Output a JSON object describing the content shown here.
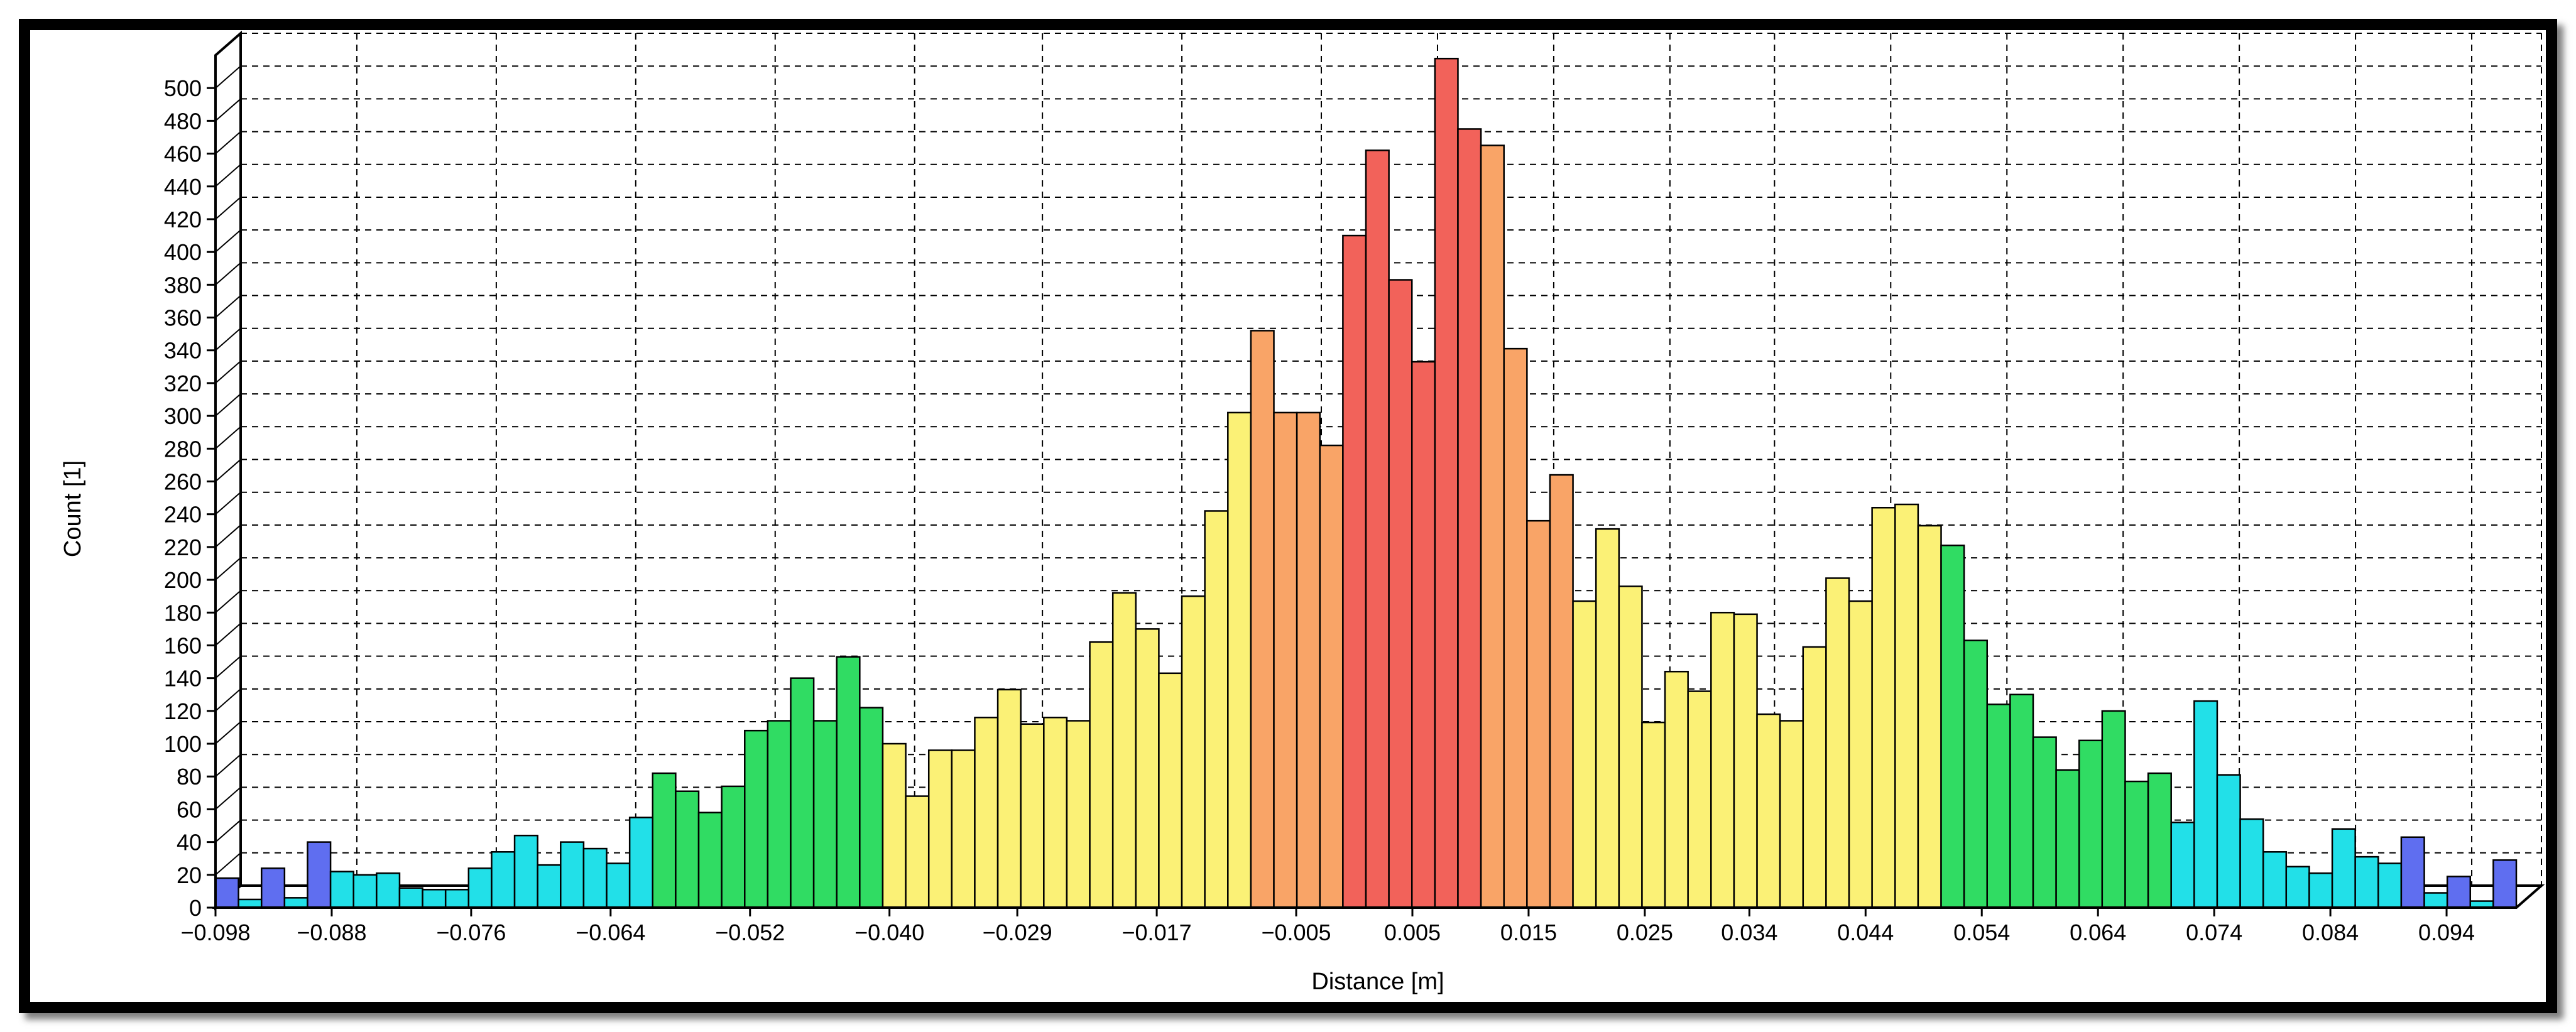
{
  "chart_data": {
    "type": "bar",
    "xlabel": "Distance [m]",
    "ylabel": "Count [1]",
    "ylim": [
      0,
      520
    ],
    "y_ticks": [
      0,
      20,
      40,
      60,
      80,
      100,
      120,
      140,
      160,
      180,
      200,
      220,
      240,
      260,
      280,
      300,
      320,
      340,
      360,
      380,
      400,
      420,
      440,
      460,
      480,
      500
    ],
    "x_tick_labels": [
      "-0.098",
      "-0.088",
      "-0.076",
      "-0.064",
      "-0.052",
      "-0.040",
      "-0.029",
      "-0.017",
      "-0.005",
      "0.005",
      "0.015",
      "0.025",
      "0.034",
      "0.044",
      "0.054",
      "0.064",
      "0.074",
      "0.084",
      "0.094"
    ],
    "xlim": [
      -0.098,
      0.1
    ],
    "bin_width": 0.002,
    "grid": true,
    "values": [
      18,
      5,
      24,
      6,
      40,
      22,
      20,
      21,
      12,
      11,
      11,
      24,
      34,
      44,
      26,
      40,
      36,
      27,
      55,
      82,
      71,
      58,
      74,
      108,
      114,
      140,
      114,
      153,
      122,
      100,
      68,
      96,
      96,
      116,
      133,
      112,
      116,
      114,
      162,
      192,
      170,
      143,
      190,
      242,
      302,
      352,
      302,
      302,
      282,
      410,
      462,
      383,
      333,
      518,
      475,
      465,
      341,
      236,
      264,
      187,
      231,
      196,
      113,
      144,
      132,
      180,
      179,
      118,
      114,
      159,
      201,
      187,
      244,
      246,
      233,
      221,
      163,
      124,
      130,
      104,
      84,
      102,
      120,
      77,
      82,
      52,
      126,
      81,
      54,
      34,
      25,
      21,
      48,
      31,
      27,
      43,
      9,
      19,
      4,
      29
    ],
    "colors": {
      "blue": "#5f6ef0",
      "cyan": "#22e0e8",
      "green": "#30dc63",
      "yellow": "#fbf176",
      "orange": "#f9a467",
      "red": "#f2625a"
    }
  }
}
